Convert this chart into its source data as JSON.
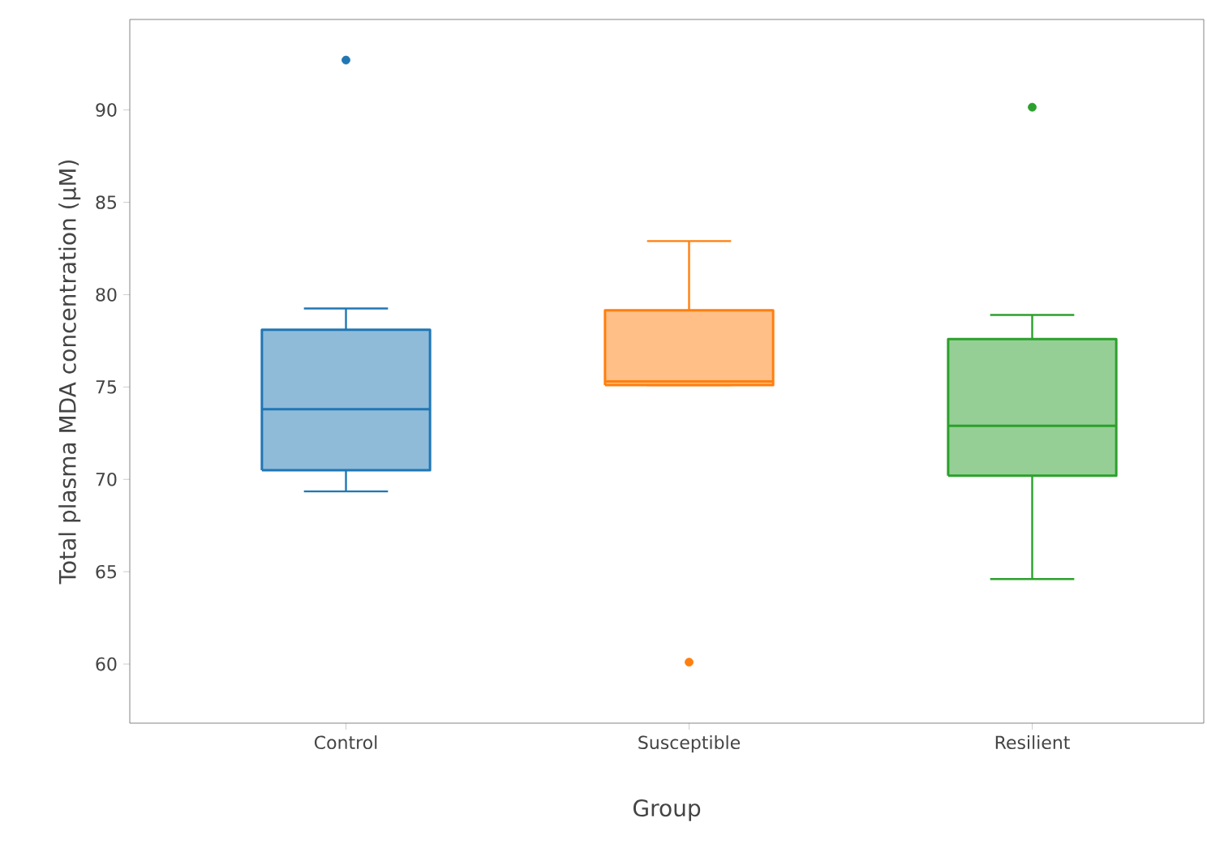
{
  "chart_data": {
    "type": "box",
    "xlabel": "Group",
    "ylabel": "Total plasma MDA concentration (μM)",
    "ylim": [
      56.8,
      94.9
    ],
    "yticks": [
      60,
      65,
      70,
      75,
      80,
      85,
      90
    ],
    "grid": false,
    "series": [
      {
        "color": "#1f77b4",
        "boxes": [
          {
            "low": 69.35,
            "q1": 70.5,
            "median": 73.8,
            "q3": 78.1,
            "high": 79.25,
            "outliers": [
              92.7
            ]
          },
          null,
          null
        ]
      },
      {
        "color": "#ff7f0e",
        "boxes": [
          null,
          {
            "low": 75.1,
            "q1": 75.1,
            "median": 75.3,
            "q3": 79.15,
            "high": 82.9,
            "outliers": [
              60.1
            ]
          },
          null
        ]
      },
      {
        "color": "#2ca02c",
        "boxes": [
          null,
          null,
          {
            "low": 64.6,
            "q1": 70.2,
            "median": 72.9,
            "q3": 77.6,
            "high": 78.9,
            "outliers": [
              90.15
            ]
          }
        ]
      }
    ],
    "categories": [
      "Control",
      "Susceptible",
      "Resilient"
    ]
  }
}
